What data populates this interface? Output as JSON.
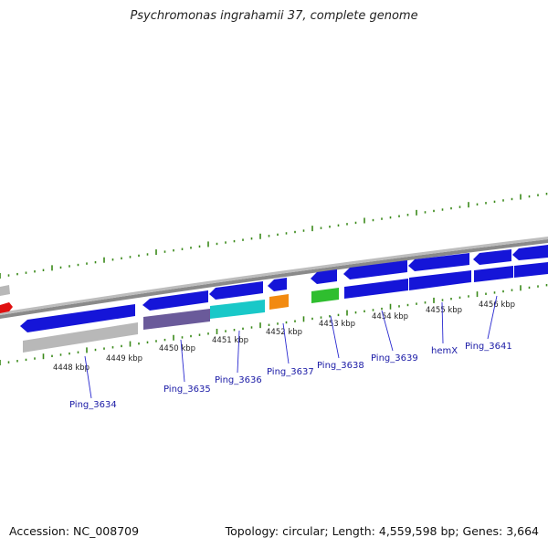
{
  "title": "Psychromonas ingrahamii 37, complete genome",
  "footer": {
    "accession": "Accession: NC_008709",
    "topology": "Topology: circular; Length: 4,559,598 bp; Genes: 3,664"
  },
  "colors": {
    "cds": "#1515d8",
    "rna_gray": "#b8b8b8",
    "red": "#e01010",
    "cyan": "#19c8c8",
    "orange": "#f28a10",
    "green": "#2fbe2f",
    "purple": "#6a5a9a",
    "backbone": "#8a8a8a",
    "dot_green": "#3a8a1a"
  },
  "tick_labels": [
    "4448 kbp",
    "4449 kbp",
    "4450 kbp",
    "4451 kbp",
    "4452 kbp",
    "4453 kbp",
    "4454 kbp",
    "4455 kbp",
    "4456 kbp"
  ],
  "gene_labels": [
    "Ping_3634",
    "Ping_3635",
    "Ping_3636",
    "Ping_3637",
    "Ping_3638",
    "Ping_3639",
    "hemX",
    "Ping_3641"
  ]
}
